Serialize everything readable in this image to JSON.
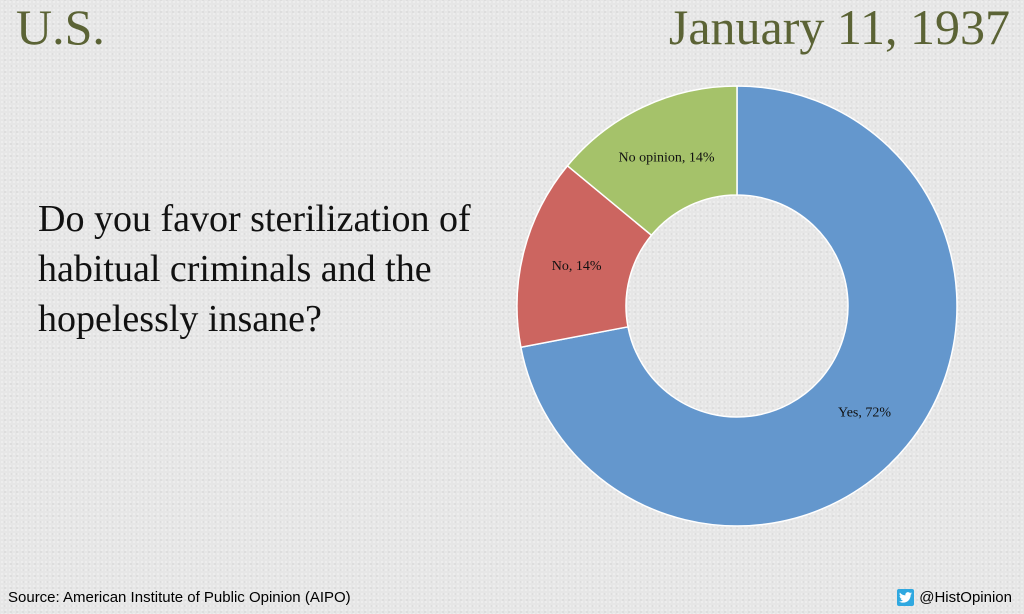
{
  "header": {
    "region": "U.S.",
    "date": "January 11, 1937"
  },
  "question": "Do you favor sterilization of habitual criminals and the hopelessly insane?",
  "footer": {
    "source": "Source: American Institute of Public Opinion (AIPO)",
    "handle": "@HistOpinion",
    "handle_icon": "twitter-icon"
  },
  "chart_data": {
    "type": "pie",
    "variant": "donut",
    "categories": [
      "Yes",
      "No",
      "No opinion"
    ],
    "values": [
      72,
      14,
      14
    ],
    "labels": [
      "Yes, 72%",
      "No, 14%",
      "No opinion, 14%"
    ],
    "colors": [
      "#6497cd",
      "#cc6560",
      "#a5c26a"
    ],
    "unit": "%"
  }
}
